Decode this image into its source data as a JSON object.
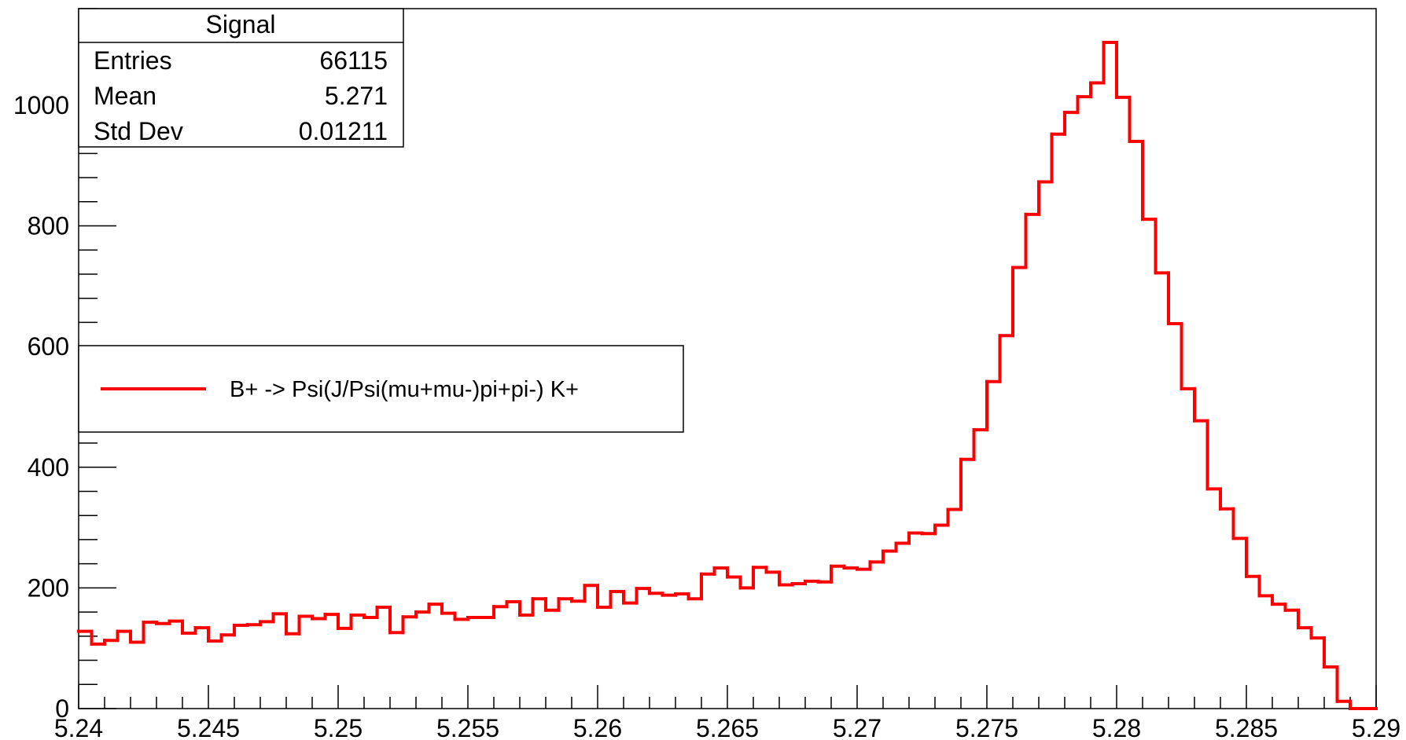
{
  "chart_data": {
    "type": "histogram",
    "title": "",
    "xlabel": "",
    "ylabel": "",
    "xlim": [
      5.24,
      5.29
    ],
    "ylim": [
      0,
      1160
    ],
    "grid": false,
    "line_color": "#ff0000",
    "x_ticks": [
      "5.24",
      "5.245",
      "5.25",
      "5.255",
      "5.26",
      "5.265",
      "5.27",
      "5.275",
      "5.28",
      "5.285",
      "5.29"
    ],
    "y_ticks": [
      "0",
      "200",
      "400",
      "600",
      "800",
      "1000"
    ],
    "series": [
      {
        "name": "B+ -> Psi(J/Psi(mu+mu-)pi+pi-) K+",
        "bin_edges_start": 5.24,
        "bin_width": 0.0005,
        "values": [
          128,
          107,
          113,
          128,
          110,
          143,
          141,
          145,
          125,
          134,
          112,
          122,
          138,
          139,
          144,
          157,
          124,
          153,
          149,
          156,
          133,
          155,
          151,
          168,
          126,
          152,
          160,
          173,
          158,
          148,
          151,
          151,
          169,
          177,
          155,
          182,
          163,
          182,
          178,
          204,
          168,
          194,
          175,
          199,
          191,
          188,
          190,
          182,
          223,
          233,
          218,
          200,
          234,
          226,
          205,
          207,
          211,
          210,
          236,
          233,
          231,
          243,
          261,
          274,
          291,
          290,
          304,
          330,
          413,
          462,
          542,
          618,
          731,
          819,
          873,
          952,
          988,
          1014,
          1037,
          1104,
          1013,
          940,
          811,
          722,
          638,
          530,
          477,
          364,
          331,
          282,
          219,
          187,
          173,
          163,
          134,
          117,
          69,
          12,
          0,
          0
        ]
      }
    ],
    "legend": {
      "position": "left-middle",
      "entries": [
        "B+ -> Psi(J/Psi(mu+mu-)pi+pi-) K+"
      ]
    },
    "stats_box": {
      "title": "Signal",
      "rows": [
        {
          "label": "Entries",
          "value": "66115"
        },
        {
          "label": "Mean",
          "value": "5.271"
        },
        {
          "label": "Std Dev",
          "value": "0.01211"
        }
      ]
    }
  }
}
